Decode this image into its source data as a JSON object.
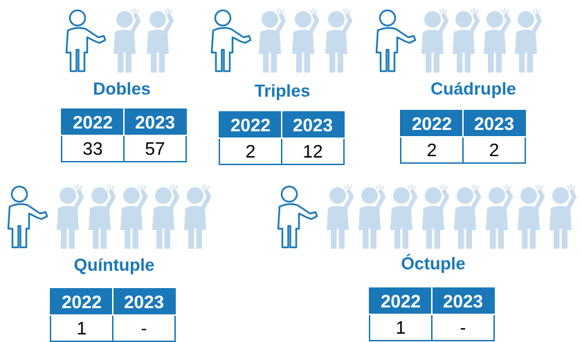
{
  "groups": [
    {
      "title": "Dobles",
      "table": {
        "header": [
          "2022",
          "2023"
        ],
        "row": [
          33,
          57
        ]
      }
    },
    {
      "title": "Triples",
      "table": {
        "header": [
          "2022",
          "2023"
        ],
        "row": [
          2,
          12
        ]
      }
    },
    {
      "title": "Cuádruple",
      "table": {
        "header": [
          "2022",
          "2023"
        ],
        "row": [
          2,
          2
        ]
      }
    },
    {
      "title": "Quíntuple",
      "table": {
        "header": [
          "2022",
          "2023"
        ],
        "row": [
          1,
          "-"
        ]
      }
    },
    {
      "title": "Óctuple",
      "table": {
        "header": [
          "2022",
          "2023"
        ],
        "row": [
          1,
          "-"
        ]
      }
    }
  ]
}
